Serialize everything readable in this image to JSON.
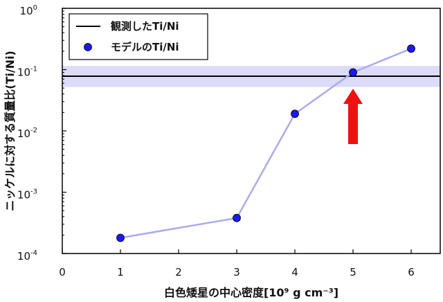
{
  "chart_data": {
    "type": "scatter",
    "xlabel": "白色矮星の中心密度[10⁹ g cm⁻³]",
    "ylabel": "ニッケルに対する質量比(Ti/Ni)",
    "xlim": [
      0,
      6.5
    ],
    "ylim": [
      0.0001,
      1
    ],
    "y_scale": "log",
    "x_ticks": [
      "0",
      "1",
      "2",
      "3",
      "4",
      "5",
      "6"
    ],
    "y_ticks": [
      {
        "value": 0.0001,
        "base": "10",
        "exp": "-4"
      },
      {
        "value": 0.001,
        "base": "10",
        "exp": "-3"
      },
      {
        "value": 0.01,
        "base": "10",
        "exp": "-2"
      },
      {
        "value": 0.1,
        "base": "10",
        "exp": "-1"
      },
      {
        "value": 1,
        "base": "10",
        "exp": "0"
      }
    ],
    "observed": {
      "name": "観測したTi/Ni",
      "value": 0.078,
      "band": [
        0.052,
        0.115
      ],
      "line_color": "#000000",
      "band_color": "#dcdcf8"
    },
    "series": [
      {
        "name": "モデルのTi/Ni",
        "x": [
          1,
          3,
          4,
          5,
          6
        ],
        "y": [
          0.00018,
          0.00038,
          0.019,
          0.09,
          0.22
        ],
        "marker_color": "#1a1aee",
        "line_color": "#aaaaee"
      }
    ],
    "annotation": {
      "type": "arrow",
      "x": 5,
      "color": "#ee1111"
    },
    "legend_position": "top-left",
    "grid": false
  }
}
